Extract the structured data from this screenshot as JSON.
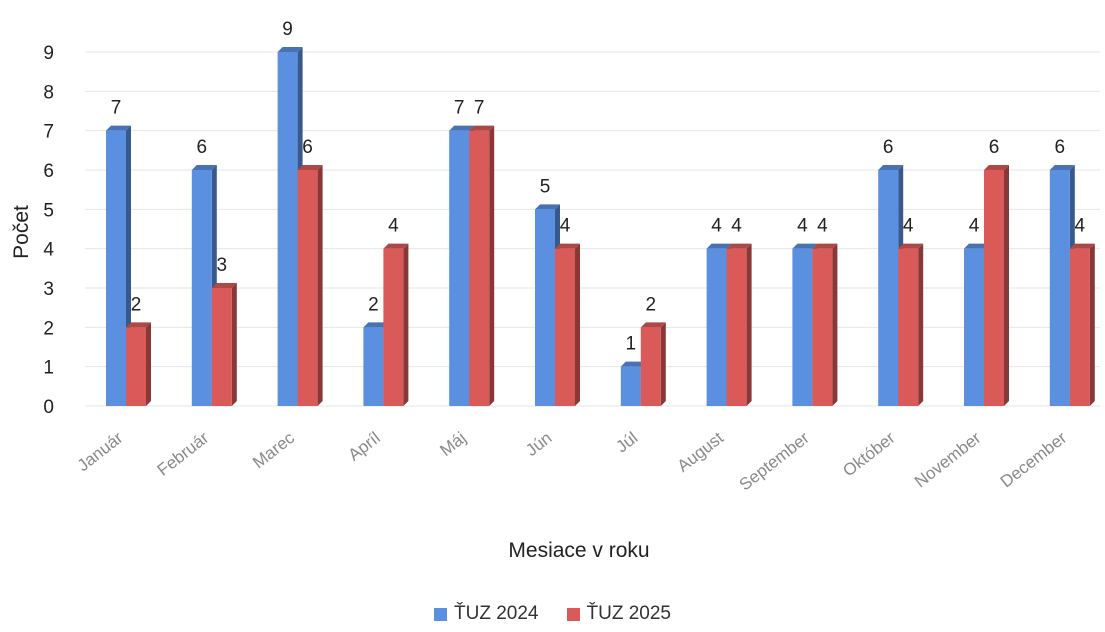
{
  "chart_data": {
    "type": "bar",
    "categories": [
      "Január",
      "Február",
      "Marec",
      "Apríl",
      "Máj",
      "Jún",
      "Júl",
      "August",
      "September",
      "Október",
      "November",
      "December"
    ],
    "series": [
      {
        "name": "ŤUZ 2024",
        "values": [
          7,
          6,
          9,
          2,
          7,
          5,
          1,
          4,
          4,
          6,
          4,
          6
        ],
        "color": "#5b8fe0"
      },
      {
        "name": "ŤUZ 2025",
        "values": [
          2,
          3,
          6,
          4,
          7,
          4,
          2,
          4,
          4,
          4,
          6,
          4
        ],
        "color": "#d95a58"
      }
    ],
    "xlabel": "Mesiace v roku",
    "ylabel": "Počet",
    "ylim": [
      0,
      9
    ],
    "yticks": [
      0,
      1,
      2,
      3,
      4,
      5,
      6,
      7,
      8,
      9
    ],
    "grid": true,
    "legend_position": "bottom",
    "style": "3d-columns"
  }
}
